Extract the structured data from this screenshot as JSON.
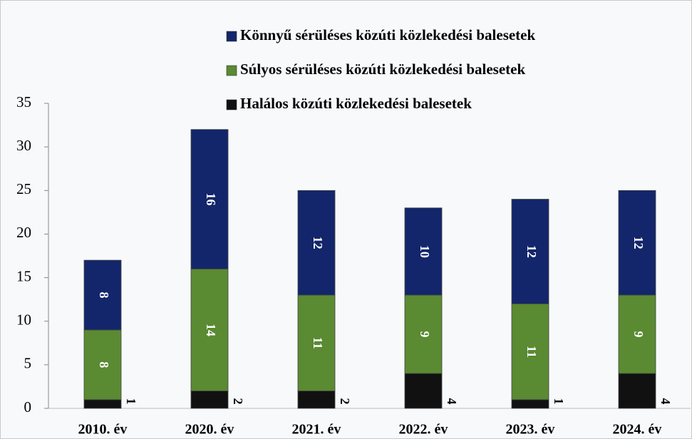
{
  "chart_data": {
    "type": "stacked-bar",
    "categories": [
      "2010. év",
      "2020. év",
      "2021. év",
      "2022. év",
      "2023. év",
      "2024. év"
    ],
    "series": [
      {
        "name": "Halálos közúti közlekedési balesetek",
        "color": "#111111",
        "values": [
          1,
          2,
          2,
          4,
          1,
          4
        ]
      },
      {
        "name": "Súlyos sérüléses közúti közlekedési balesetek",
        "color": "#5a8a32",
        "values": [
          8,
          14,
          11,
          9,
          11,
          9
        ]
      },
      {
        "name": "Könnyű sérüléses közúti közlekedési balesetek",
        "color": "#13266b",
        "values": [
          8,
          16,
          12,
          10,
          12,
          12
        ]
      }
    ],
    "ylim": [
      0,
      35
    ],
    "yticks": [
      0,
      5,
      10,
      15,
      20,
      25,
      30,
      35
    ],
    "grid": false
  }
}
